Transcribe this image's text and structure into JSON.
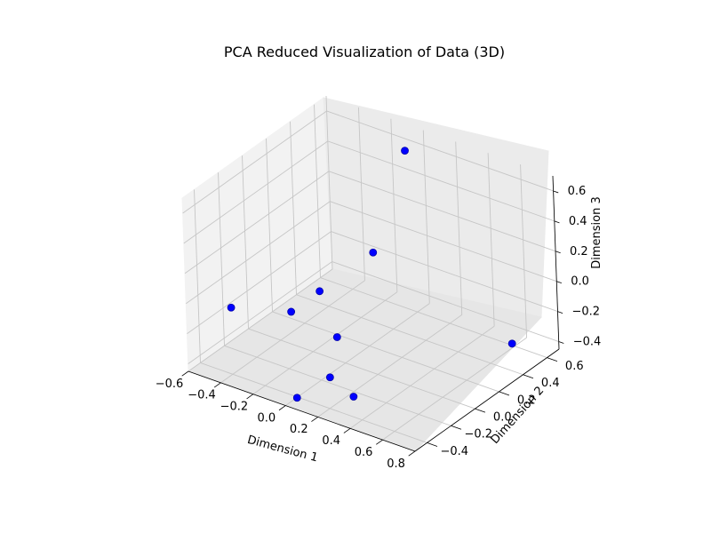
{
  "chart_data": {
    "type": "scatter",
    "projection": "3d",
    "title": "PCA Reduced Visualization of Data (3D)",
    "xlabel": "Dimension 1",
    "ylabel": "Dimension 2",
    "zlabel": "Dimension 3",
    "xlim": [
      -0.6,
      0.8
    ],
    "ylim": [
      -0.5,
      0.7
    ],
    "zlim": [
      -0.45,
      0.7
    ],
    "xticks": [
      "−0.6",
      "−0.4",
      "−0.2",
      "0.0",
      "0.2",
      "0.4",
      "0.6",
      "0.8"
    ],
    "yticks": [
      "−0.4",
      "−0.2",
      "0.0",
      "0.2",
      "0.4",
      "0.6"
    ],
    "zticks": [
      "−0.4",
      "−0.2",
      "0.0",
      "0.2",
      "0.4",
      "0.6"
    ],
    "grid": true,
    "marker_color": "#0000ff",
    "points": [
      {
        "x": -0.02,
        "y": 0.57,
        "z": 0.63
      },
      {
        "x": -0.08,
        "y": 0.36,
        "z": 0.05
      },
      {
        "x": -0.3,
        "y": 0.2,
        "z": -0.2
      },
      {
        "x": -0.48,
        "y": -0.29,
        "z": -0.1
      },
      {
        "x": -0.19,
        "y": -0.18,
        "z": -0.08
      },
      {
        "x": 0.03,
        "y": -0.1,
        "z": -0.21
      },
      {
        "x": 0.1,
        "y": -0.26,
        "z": -0.36
      },
      {
        "x": 0.7,
        "y": 0.45,
        "z": -0.31
      },
      {
        "x": 0.22,
        "y": -0.23,
        "z": -0.46
      },
      {
        "x": 0.02,
        "y": -0.43,
        "z": -0.43
      }
    ]
  }
}
